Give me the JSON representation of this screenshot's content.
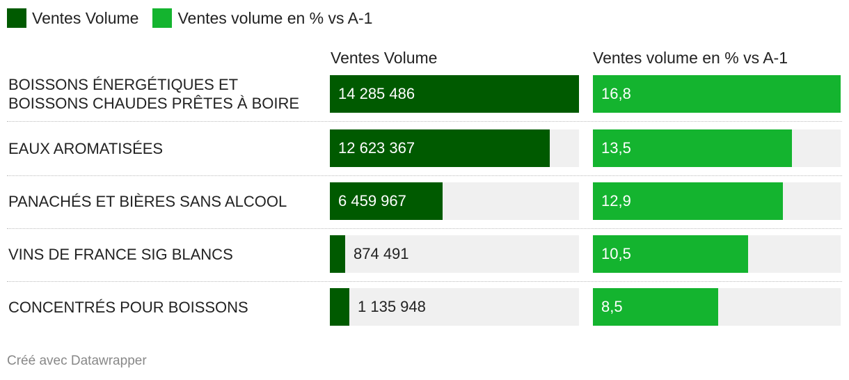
{
  "chart_data": {
    "type": "bar",
    "categories": [
      "BOISSONS ÉNERGÉTIQUES ET BOISSONS CHAUDES PRÊTES À BOIRE",
      "EAUX AROMATISÉES",
      "PANACHÉS ET BIÈRES SANS ALCOOL",
      "VINS DE FRANCE SIG BLANCS",
      "CONCENTRÉS POUR BOISSONS"
    ],
    "series": [
      {
        "name": "Ventes Volume",
        "values": [
          14285486,
          12623367,
          6459967,
          874491,
          1135948
        ],
        "labels": [
          "14 285 486",
          "12 623 367",
          "6 459 967",
          "874 491",
          "1 135 948"
        ],
        "color": "#005a00",
        "max": 14285486
      },
      {
        "name": "Ventes volume en % vs A-1",
        "values": [
          16.8,
          13.5,
          12.9,
          10.5,
          8.5
        ],
        "labels": [
          "16,8",
          "13,5",
          "12,9",
          "10,5",
          "8,5"
        ],
        "color": "#14b42f",
        "max": 16.8
      }
    ],
    "legend_position": "top-left"
  },
  "footer": "Créé avec Datawrapper"
}
